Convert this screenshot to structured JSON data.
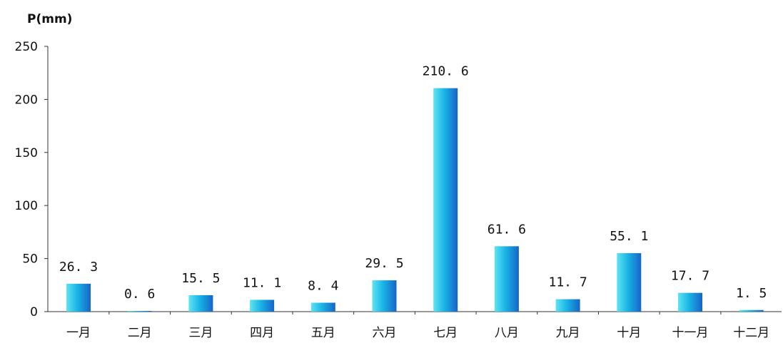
{
  "chart_data": {
    "type": "bar",
    "title": "",
    "xlabel": "",
    "ylabel": "P(mm)",
    "categories": [
      "一月",
      "二月",
      "三月",
      "四月",
      "五月",
      "六月",
      "七月",
      "八月",
      "九月",
      "十月",
      "十一月",
      "十二月"
    ],
    "values": [
      26.3,
      0.6,
      15.5,
      11.1,
      8.4,
      29.5,
      210.6,
      61.6,
      11.7,
      55.1,
      17.7,
      1.5
    ],
    "value_labels": [
      "26. 3",
      "0. 6",
      "15. 5",
      "11. 1",
      "8. 4",
      "29. 5",
      "210. 6",
      "61. 6",
      "11. 7",
      "55. 1",
      "17. 7",
      "1. 5"
    ],
    "ylim": [
      0,
      250
    ],
    "yticks": [
      0,
      50,
      100,
      150,
      200,
      250
    ],
    "grid": false,
    "legend": "none",
    "colors": {
      "bar_light": "#5fe3f2",
      "bar_mid": "#19b4e6",
      "bar_dark": "#1764c8",
      "axis": "#333333"
    }
  }
}
